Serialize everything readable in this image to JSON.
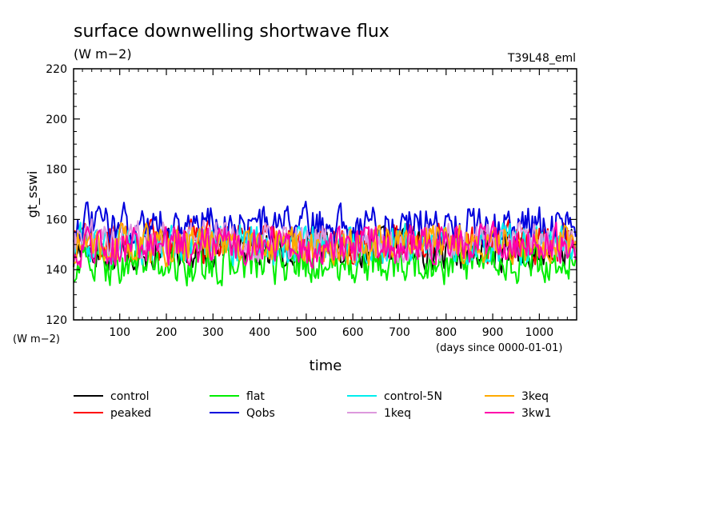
{
  "chart_data": {
    "type": "line",
    "title": "surface downwelling shortwave flux",
    "units": "(W m−2)",
    "experiment": "T39L48_eml",
    "ylabel": "gt_sswi",
    "yunits_label": "(W m−2)",
    "xlabel": "time",
    "xunits_label": "(days since 0000-01-01)",
    "xlim": [
      1,
      1080
    ],
    "ylim": [
      120,
      220
    ],
    "xticks": [
      100,
      200,
      300,
      400,
      500,
      600,
      700,
      800,
      900,
      1000
    ],
    "yticks": [
      120,
      140,
      160,
      180,
      200,
      220
    ],
    "grid": false,
    "legend_position": "below-plot",
    "series": [
      {
        "name": "control",
        "color": "#000000",
        "mean": 148,
        "amplitude": 7
      },
      {
        "name": "peaked",
        "color": "#ff0000",
        "mean": 151,
        "amplitude": 7
      },
      {
        "name": "flat",
        "color": "#00ee00",
        "mean": 142,
        "amplitude": 7
      },
      {
        "name": "Qobs",
        "color": "#0000dd",
        "mean": 158,
        "amplitude": 7
      },
      {
        "name": "control-5N",
        "color": "#00eeee",
        "mean": 150,
        "amplitude": 7
      },
      {
        "name": "1keq",
        "color": "#dd99dd",
        "mean": 151,
        "amplitude": 7
      },
      {
        "name": "3keq",
        "color": "#ffaa00",
        "mean": 150,
        "amplitude": 7
      },
      {
        "name": "3kw1",
        "color": "#ff00aa",
        "mean": 150,
        "amplitude": 7
      }
    ]
  }
}
